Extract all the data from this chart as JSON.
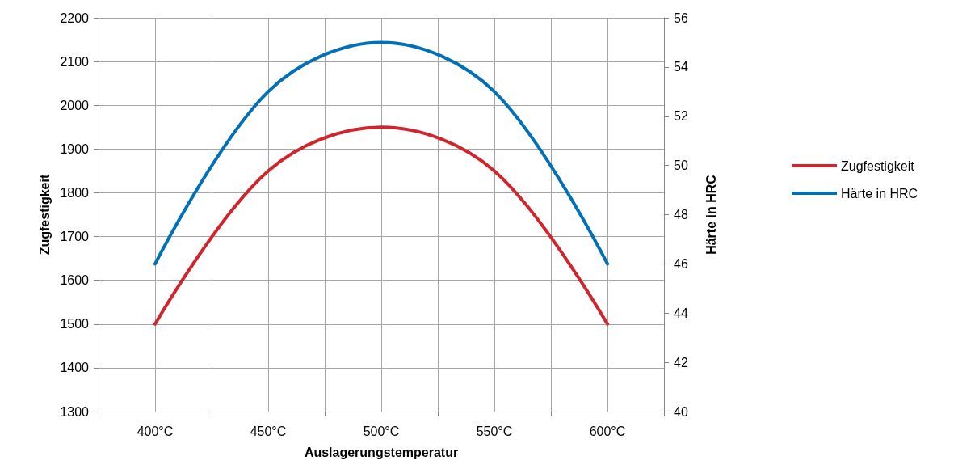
{
  "chart_data": {
    "type": "line",
    "xlabel": "Auslagerungstemperatur",
    "ylabel": "Zugfestigkeit",
    "y2label": "Härte in HRC",
    "categories": [
      "400°C",
      "450°C",
      "500°C",
      "550°C",
      "600°C"
    ],
    "series": [
      {
        "name": "Zugfestigkeit",
        "color": "#d0252c",
        "values": [
          1500,
          1850,
          1950,
          1850,
          1500
        ]
      },
      {
        "name": "Härte in HRC",
        "color": "#0070b8",
        "axis": "y2",
        "values": [
          46,
          53,
          55,
          53,
          46
        ]
      }
    ],
    "ylim": [
      1300,
      2200
    ],
    "yticks": [
      1300,
      1400,
      1500,
      1600,
      1700,
      1800,
      1900,
      2000,
      2100,
      2200
    ],
    "y2lim": [
      40,
      56
    ],
    "y2ticks": [
      40,
      42,
      44,
      46,
      48,
      50,
      52,
      54,
      56
    ],
    "grid": true,
    "legend": "right",
    "marker": "none",
    "line_style": "solid"
  }
}
